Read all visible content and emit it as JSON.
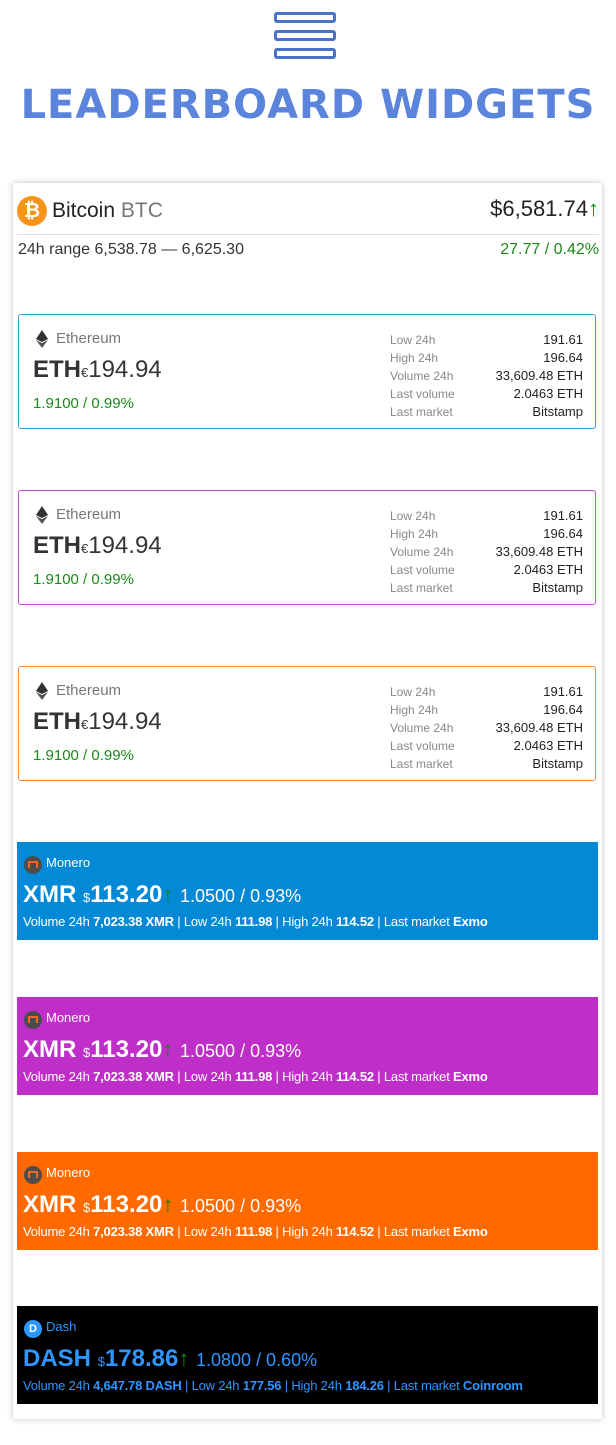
{
  "header": {
    "title": "LEADERBOARD WIDGETS"
  },
  "bitcoin": {
    "name": "Bitcoin",
    "symbol": "BTC",
    "price": "$6,581.74",
    "arrow": "↑",
    "range": "24h range 6,538.78 — 6,625.30",
    "change": "27.77 / 0.42%"
  },
  "eth_cards": [
    {
      "border": "#3ca0d8",
      "name": "Ethereum",
      "symbol": "ETH",
      "currency": "€",
      "price": "194.94",
      "change": "1.9100 / 0.99%",
      "stats": [
        {
          "k": "Low 24h",
          "v": "191.61"
        },
        {
          "k": "High 24h",
          "v": "196.64"
        },
        {
          "k": "Volume 24h",
          "v": "33,609.48 ETH"
        },
        {
          "k": "Last volume",
          "v": "2.0463 ETH"
        },
        {
          "k": "Last market",
          "v": "Bitstamp"
        }
      ]
    },
    {
      "border": "#c04fd0",
      "name": "Ethereum",
      "symbol": "ETH",
      "currency": "€",
      "price": "194.94",
      "change": "1.9100 / 0.99%",
      "stats": [
        {
          "k": "Low 24h",
          "v": "191.61"
        },
        {
          "k": "High 24h",
          "v": "196.64"
        },
        {
          "k": "Volume 24h",
          "v": "33,609.48 ETH"
        },
        {
          "k": "Last volume",
          "v": "2.0463 ETH"
        },
        {
          "k": "Last market",
          "v": "Bitstamp"
        }
      ]
    },
    {
      "border": "#f08a3c",
      "name": "Ethereum",
      "symbol": "ETH",
      "currency": "€",
      "price": "194.94",
      "change": "1.9100 / 0.99%",
      "stats": [
        {
          "k": "Low 24h",
          "v": "191.61"
        },
        {
          "k": "High 24h",
          "v": "196.64"
        },
        {
          "k": "Volume 24h",
          "v": "33,609.48 ETH"
        },
        {
          "k": "Last volume",
          "v": "2.0463 ETH"
        },
        {
          "k": "Last market",
          "v": "Bitstamp"
        }
      ]
    }
  ],
  "xmr_bands": [
    {
      "bg": "#0489d6",
      "name": "Monero",
      "symbol": "XMR",
      "currency": "$",
      "price": "113.20",
      "arrow": "↑",
      "change": "1.0500 / 0.93%",
      "vol_label": "Volume 24h",
      "vol": "7,023.38 XMR",
      "low_label": "Low 24h",
      "low": "111.98",
      "high_label": "High 24h",
      "high": "114.52",
      "market_label": "Last market",
      "market": "Exmo"
    },
    {
      "bg": "#bf2ec8",
      "name": "Monero",
      "symbol": "XMR",
      "currency": "$",
      "price": "113.20",
      "arrow": "↑",
      "change": "1.0500 / 0.93%",
      "vol_label": "Volume 24h",
      "vol": "7,023.38 XMR",
      "low_label": "Low 24h",
      "low": "111.98",
      "high_label": "High 24h",
      "high": "114.52",
      "market_label": "Last market",
      "market": "Exmo"
    },
    {
      "bg": "#ff6a00",
      "name": "Monero",
      "symbol": "XMR",
      "currency": "$",
      "price": "113.20",
      "arrow": "↑",
      "change": "1.0500 / 0.93%",
      "vol_label": "Volume 24h",
      "vol": "7,023.38 XMR",
      "low_label": "Low 24h",
      "low": "111.98",
      "high_label": "High 24h",
      "high": "114.52",
      "market_label": "Last market",
      "market": "Exmo"
    }
  ],
  "dash_band": {
    "bg": "#000000",
    "name": "Dash",
    "symbol": "DASH",
    "currency": "$",
    "price": "178.86",
    "arrow": "↑",
    "change": "1.0800 / 0.60%",
    "vol_label": "Volume 24h",
    "vol": "4,647.78 DASH",
    "low_label": "Low 24h",
    "low": "177.56",
    "high_label": "High 24h",
    "high": "184.26",
    "market_label": "Last market",
    "market": "Coinroom"
  }
}
